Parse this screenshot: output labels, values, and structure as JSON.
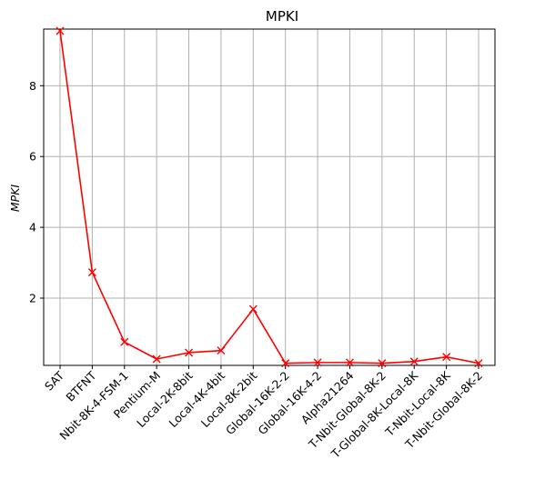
{
  "chart_data": {
    "type": "line",
    "title": "MPKI",
    "xlabel": "",
    "ylabel": "MPKI",
    "categories": [
      "SAT",
      "BTFNT",
      "Nbit-8K-4-FSM-1",
      "Pentium-M",
      "Local-2K-8bit",
      "Local-4K-4bit",
      "Local-8K-2bit",
      "Global-16K-2-2",
      "Global-16K-4-2",
      "Alpha21264",
      "T-Nbit-Global-8K-2",
      "T-Global-8K-Local-8K",
      "T-Nbit-Local-8K",
      "T-Nbit-Global-8K-2"
    ],
    "series": [
      {
        "values": [
          9.55,
          2.73,
          0.76,
          0.28,
          0.46,
          0.52,
          1.69,
          0.16,
          0.18,
          0.18,
          0.16,
          0.21,
          0.34,
          0.16
        ],
        "color": "#ff0000",
        "marker": "x"
      }
    ],
    "ylim": [
      0.1,
      9.6
    ],
    "yticks": [
      2,
      4,
      6,
      8
    ],
    "grid": true
  }
}
